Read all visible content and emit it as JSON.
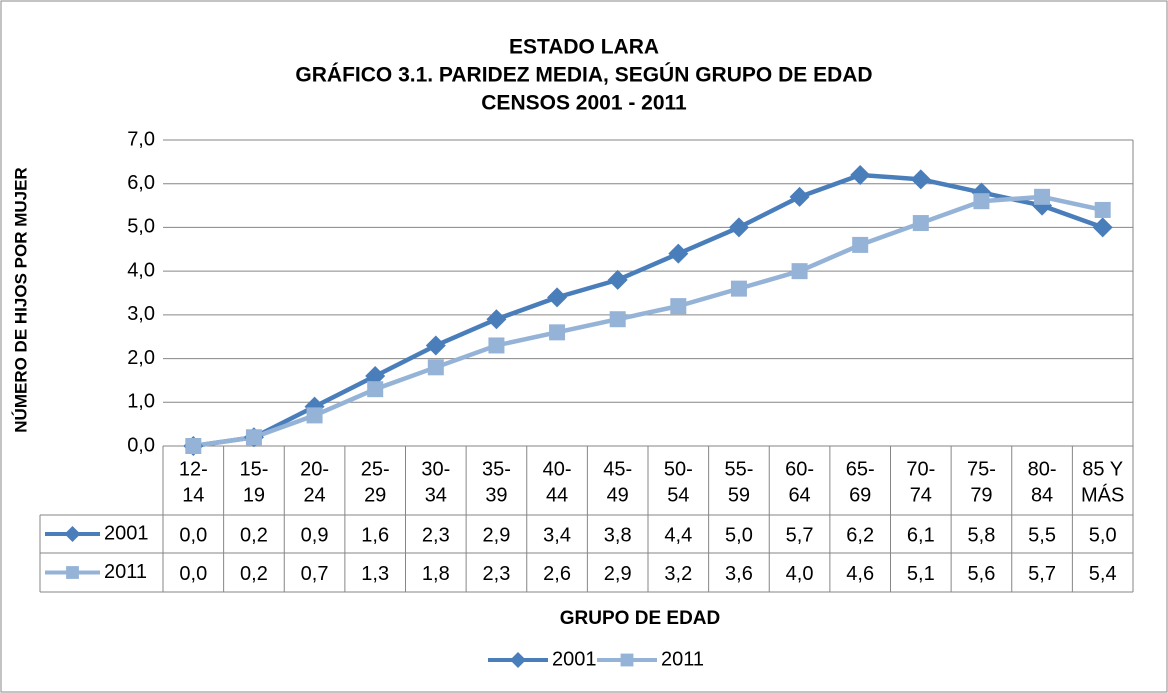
{
  "chart_data": {
    "type": "line",
    "title": [
      "ESTADO LARA",
      "GRÁFICO 3.1. PARIDEZ MEDIA, SEGÚN GRUPO DE EDAD",
      "CENSOS 2001 - 2011"
    ],
    "x_label": "GRUPO DE EDAD",
    "y_label": "NÚMERO DE HIJOS POR MUJER",
    "categories": [
      [
        "12-",
        "14"
      ],
      [
        "15-",
        "19"
      ],
      [
        "20-",
        "24"
      ],
      [
        "25-",
        "29"
      ],
      [
        "30-",
        "34"
      ],
      [
        "35-",
        "39"
      ],
      [
        "40-",
        "44"
      ],
      [
        "45-",
        "49"
      ],
      [
        "50-",
        "54"
      ],
      [
        "55-",
        "59"
      ],
      [
        "60-",
        "64"
      ],
      [
        "65-",
        "69"
      ],
      [
        "70-",
        "74"
      ],
      [
        "75-",
        "79"
      ],
      [
        "80-",
        "84"
      ],
      [
        "85 Y",
        "MÁS"
      ]
    ],
    "series": [
      {
        "name": "2001",
        "color": "#4a7ebb",
        "marker": "diamond",
        "values": [
          0.0,
          0.2,
          0.9,
          1.6,
          2.3,
          2.9,
          3.4,
          3.8,
          4.4,
          5.0,
          5.7,
          6.2,
          6.1,
          5.8,
          5.5,
          5.0
        ],
        "value_labels": [
          "0,0",
          "0,2",
          "0,9",
          "1,6",
          "2,3",
          "2,9",
          "3,4",
          "3,8",
          "4,4",
          "5,0",
          "5,7",
          "6,2",
          "6,1",
          "5,8",
          "5,5",
          "5,0"
        ]
      },
      {
        "name": "2011",
        "color": "#95b3d7",
        "marker": "square",
        "values": [
          0.0,
          0.2,
          0.7,
          1.3,
          1.8,
          2.3,
          2.6,
          2.9,
          3.2,
          3.6,
          4.0,
          4.6,
          5.1,
          5.6,
          5.7,
          5.4
        ],
        "value_labels": [
          "0,0",
          "0,2",
          "0,7",
          "1,3",
          "1,8",
          "2,3",
          "2,6",
          "2,9",
          "3,2",
          "3,6",
          "4,0",
          "4,6",
          "5,1",
          "5,6",
          "5,7",
          "5,4"
        ]
      }
    ],
    "ylim": [
      0,
      7
    ],
    "yticks": [
      {
        "value": 0,
        "label": "0,0"
      },
      {
        "value": 1,
        "label": "1,0"
      },
      {
        "value": 2,
        "label": "2,0"
      },
      {
        "value": 3,
        "label": "3,0"
      },
      {
        "value": 4,
        "label": "4,0"
      },
      {
        "value": 5,
        "label": "5,0"
      },
      {
        "value": 6,
        "label": "6,0"
      },
      {
        "value": 7,
        "label": "7,0"
      }
    ],
    "grid": true,
    "legend": "bottom"
  }
}
